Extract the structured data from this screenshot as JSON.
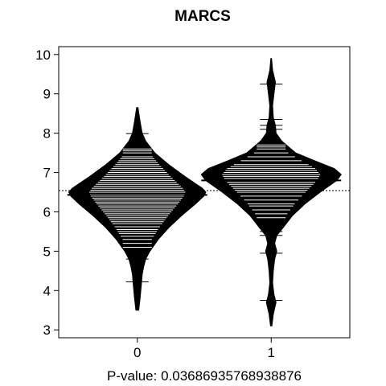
{
  "chart_data": {
    "type": "beanplot",
    "title": "MARCS",
    "xlabel": "P-value: 0.03686935768938876",
    "ylabel": "",
    "categories": [
      "0",
      "1"
    ],
    "ylim": [
      2.8,
      10.2
    ],
    "yticks": [
      3,
      4,
      5,
      6,
      7,
      8,
      9,
      10
    ],
    "overall_mean": 6.54,
    "groups": [
      {
        "name": "0",
        "mean": 6.43,
        "density": [
          [
            3.5,
            0.02
          ],
          [
            3.8,
            0.04
          ],
          [
            4.0,
            0.05
          ],
          [
            4.2,
            0.06
          ],
          [
            4.4,
            0.07
          ],
          [
            4.6,
            0.09
          ],
          [
            4.8,
            0.12
          ],
          [
            5.0,
            0.18
          ],
          [
            5.3,
            0.3
          ],
          [
            5.6,
            0.45
          ],
          [
            5.9,
            0.63
          ],
          [
            6.2,
            0.83
          ],
          [
            6.4,
            0.95
          ],
          [
            6.5,
            0.98
          ],
          [
            6.6,
            0.93
          ],
          [
            6.9,
            0.68
          ],
          [
            7.2,
            0.45
          ],
          [
            7.5,
            0.25
          ],
          [
            7.8,
            0.12
          ],
          [
            8.0,
            0.07
          ],
          [
            8.3,
            0.04
          ],
          [
            8.65,
            0.01
          ]
        ],
        "obs": [
          4.22,
          4.8,
          4.95,
          5.1,
          5.2,
          5.3,
          5.38,
          5.45,
          5.5,
          5.55,
          5.62,
          5.7,
          5.75,
          5.8,
          5.85,
          5.9,
          5.95,
          6.0,
          6.05,
          6.1,
          6.15,
          6.2,
          6.25,
          6.3,
          6.35,
          6.4,
          6.45,
          6.5,
          6.55,
          6.6,
          6.65,
          6.7,
          6.75,
          6.8,
          6.85,
          6.9,
          6.95,
          7.0,
          7.05,
          7.1,
          7.15,
          7.2,
          7.25,
          7.3,
          7.35,
          7.4,
          7.5,
          7.55,
          7.6,
          7.99
        ]
      },
      {
        "name": "1",
        "mean": 6.8,
        "density": [
          [
            3.1,
            0.01
          ],
          [
            3.4,
            0.03
          ],
          [
            3.7,
            0.07
          ],
          [
            3.9,
            0.04
          ],
          [
            4.2,
            0.02
          ],
          [
            4.5,
            0.03
          ],
          [
            4.8,
            0.05
          ],
          [
            5.0,
            0.08
          ],
          [
            5.2,
            0.05
          ],
          [
            5.4,
            0.08
          ],
          [
            5.6,
            0.17
          ],
          [
            5.9,
            0.3
          ],
          [
            6.2,
            0.48
          ],
          [
            6.5,
            0.7
          ],
          [
            6.8,
            0.94
          ],
          [
            6.95,
            1.0
          ],
          [
            7.1,
            0.9
          ],
          [
            7.3,
            0.62
          ],
          [
            7.5,
            0.35
          ],
          [
            7.8,
            0.15
          ],
          [
            8.0,
            0.07
          ],
          [
            8.2,
            0.06
          ],
          [
            8.4,
            0.03
          ],
          [
            8.7,
            0.02
          ],
          [
            9.0,
            0.04
          ],
          [
            9.3,
            0.06
          ],
          [
            9.6,
            0.02
          ],
          [
            9.9,
            0.005
          ]
        ],
        "obs": [
          3.75,
          4.95,
          5.4,
          5.5,
          5.85,
          5.95,
          6.05,
          6.15,
          6.2,
          6.3,
          6.4,
          6.5,
          6.55,
          6.6,
          6.65,
          6.7,
          6.75,
          6.8,
          6.85,
          6.9,
          6.95,
          7.0,
          7.05,
          7.1,
          7.15,
          7.2,
          7.3,
          7.4,
          7.5,
          7.6,
          7.65,
          7.7,
          7.8,
          8.1,
          8.2,
          8.35,
          9.25
        ]
      }
    ]
  }
}
